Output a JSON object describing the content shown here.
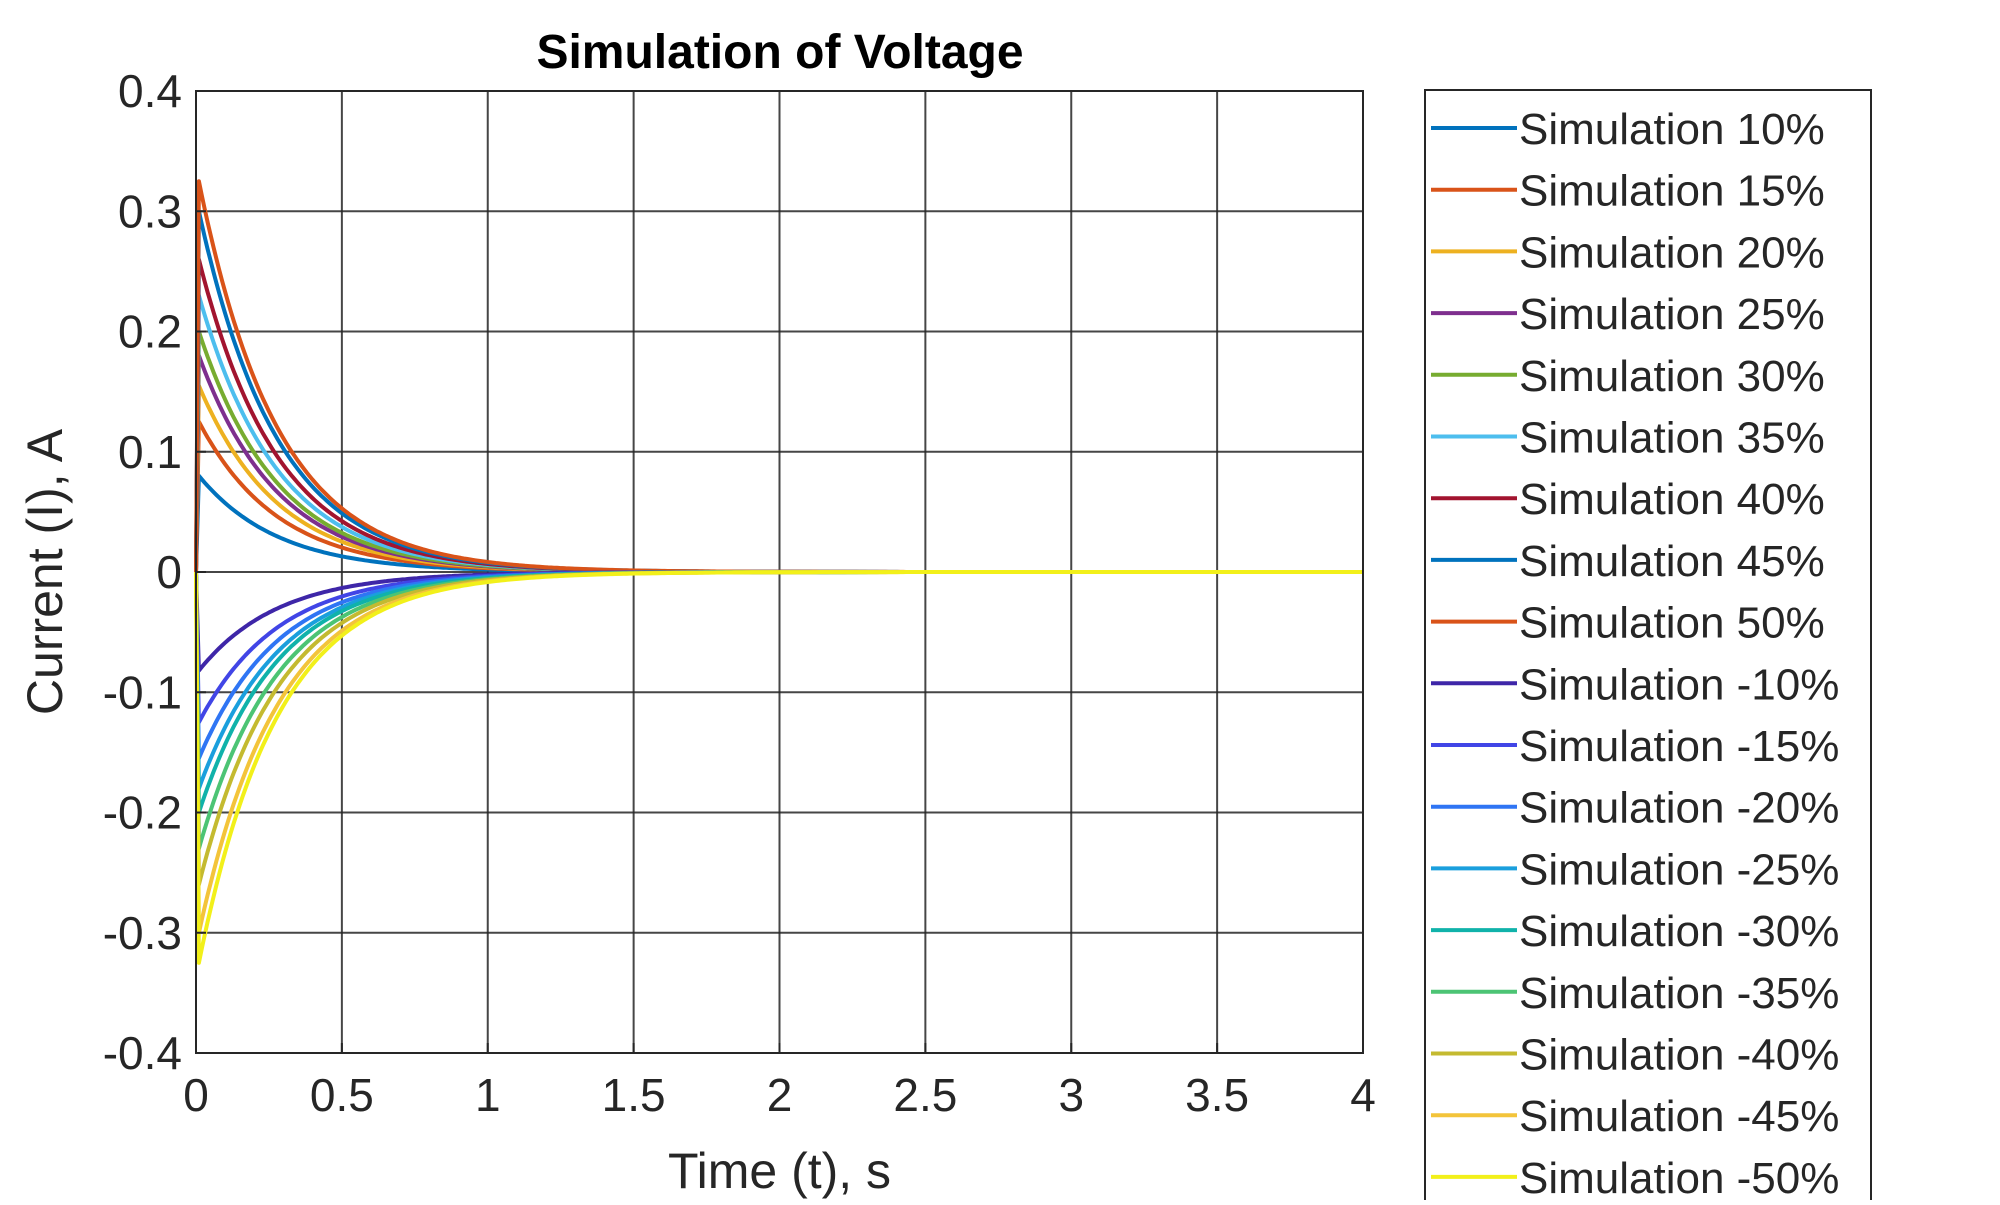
{
  "chart_data": {
    "type": "line",
    "title": "Simulation of Voltage",
    "xlabel": "Time (t), s",
    "ylabel": "Current (I), A",
    "xlim": [
      0,
      4
    ],
    "ylim": [
      -0.4,
      0.4
    ],
    "xticks": [
      0,
      0.5,
      1,
      1.5,
      2,
      2.5,
      3,
      3.5,
      4
    ],
    "xtick_labels": [
      "0",
      "0.5",
      "1",
      "1.5",
      "2",
      "2.5",
      "3",
      "3.5",
      "4"
    ],
    "yticks": [
      -0.4,
      -0.3,
      -0.2,
      -0.1,
      0,
      0.1,
      0.2,
      0.3,
      0.4
    ],
    "ytick_labels": [
      "-0.4",
      "-0.3",
      "-0.2",
      "-0.1",
      "0",
      "0.1",
      "0.2",
      "0.3",
      "0.4"
    ],
    "grid": true,
    "legend_position": "outside-right",
    "model": "exponential decay I(t) = peak * exp(-t / tau)",
    "tau": 0.27,
    "series": [
      {
        "name": "Simulation 10%",
        "peak": 0.08,
        "color": "#0072BD"
      },
      {
        "name": "Simulation 15%",
        "peak": 0.125,
        "color": "#D95319"
      },
      {
        "name": "Simulation 20%",
        "peak": 0.155,
        "color": "#EDB120"
      },
      {
        "name": "Simulation 25%",
        "peak": 0.18,
        "color": "#7E2F8E"
      },
      {
        "name": "Simulation 30%",
        "peak": 0.2,
        "color": "#77AC30"
      },
      {
        "name": "Simulation 35%",
        "peak": 0.23,
        "color": "#4DBEEE"
      },
      {
        "name": "Simulation 40%",
        "peak": 0.26,
        "color": "#A2142F"
      },
      {
        "name": "Simulation 45%",
        "peak": 0.3,
        "color": "#0072BD"
      },
      {
        "name": "Simulation 50%",
        "peak": 0.325,
        "color": "#D95319"
      },
      {
        "name": "Simulation -10%",
        "peak": -0.082,
        "color": "#3E26A8"
      },
      {
        "name": "Simulation -15%",
        "peak": -0.125,
        "color": "#4145E6"
      },
      {
        "name": "Simulation -20%",
        "peak": -0.155,
        "color": "#2F75F4"
      },
      {
        "name": "Simulation -25%",
        "peak": -0.18,
        "color": "#1A9FDD"
      },
      {
        "name": "Simulation -30%",
        "peak": -0.2,
        "color": "#10B2AA"
      },
      {
        "name": "Simulation -35%",
        "peak": -0.23,
        "color": "#4CC474"
      },
      {
        "name": "Simulation -40%",
        "peak": -0.26,
        "color": "#C4BA30"
      },
      {
        "name": "Simulation -45%",
        "peak": -0.3,
        "color": "#F3C43A"
      },
      {
        "name": "Simulation -50%",
        "peak": -0.325,
        "color": "#F2F01A"
      }
    ]
  }
}
